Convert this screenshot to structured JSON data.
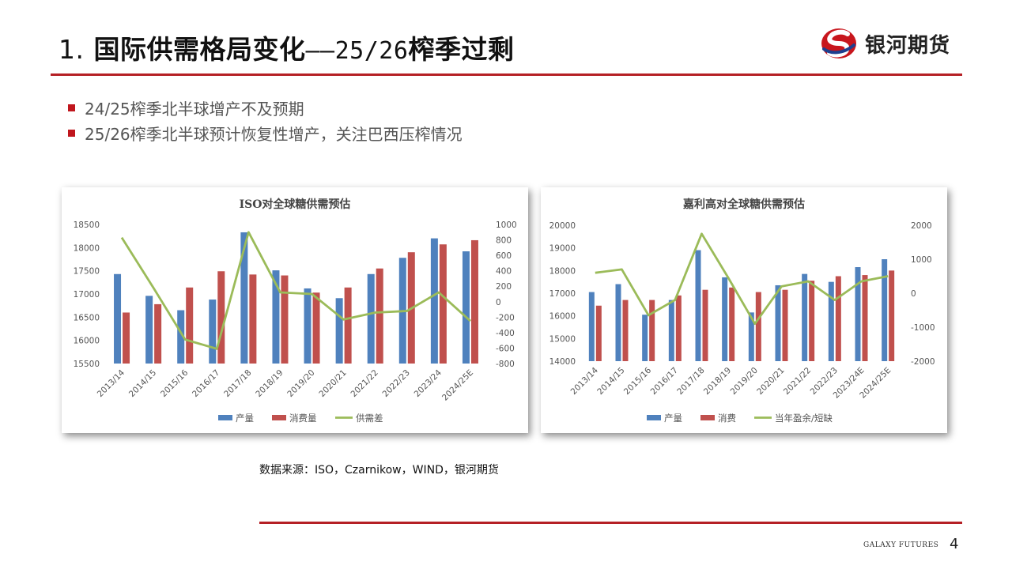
{
  "header": {
    "title_num": "1.",
    "title_main": "国际供需格局变化",
    "title_dash": "——25/26",
    "title_end": "榨季过剩",
    "logo_text": "银河期货",
    "logo_icon": "galaxy-logo-icon",
    "accent": "#b52025"
  },
  "bullets": [
    "24/25榨季北半球增产不及预期",
    "25/26榨季北半球预计恢复性增产，关注巴西压榨情况"
  ],
  "source": "数据来源：ISO，Czarnikow，WIND，银河期货",
  "footer": {
    "brand": "GALAXY FUTURES",
    "page": "4"
  },
  "chart_data": [
    {
      "type": "bar",
      "title": "ISO对全球糖供需预估",
      "categories": [
        "2013/14",
        "2014/15",
        "2015/16",
        "2016/17",
        "2017/18",
        "2018/19",
        "2019/20",
        "2020/21",
        "2021/22",
        "2022/23",
        "2023/24",
        "2024/25E"
      ],
      "series": [
        {
          "name": "产量",
          "type": "bar",
          "axis": "left",
          "color": "#4f81bd",
          "values": [
            17430,
            16960,
            16650,
            16880,
            18330,
            17510,
            17120,
            16910,
            17430,
            17780,
            18200,
            17920
          ]
        },
        {
          "name": "消费量",
          "type": "bar",
          "axis": "left",
          "color": "#c0504d",
          "values": [
            16600,
            16780,
            17140,
            17490,
            17420,
            17400,
            17030,
            17140,
            17550,
            17900,
            18070,
            18160
          ]
        },
        {
          "name": "供需差",
          "type": "line",
          "axis": "right",
          "color": "#9bbb59",
          "values": [
            830,
            180,
            -490,
            -610,
            900,
            120,
            100,
            -230,
            -140,
            -120,
            120,
            -250
          ]
        }
      ],
      "ylim_left": [
        15500,
        18500
      ],
      "yticks_left": [
        15500,
        16000,
        16500,
        17000,
        17500,
        18000,
        18500
      ],
      "ylim_right": [
        -800,
        1000
      ],
      "yticks_right": [
        -800,
        -600,
        -400,
        -200,
        0,
        200,
        400,
        600,
        800,
        1000
      ],
      "legend": "bottom"
    },
    {
      "type": "bar",
      "title": "嘉利高对全球糖供需预估",
      "categories": [
        "2013/14",
        "2014/15",
        "2015/16",
        "2016/17",
        "2017/18",
        "2018/19",
        "2019/20",
        "2020/21",
        "2021/22",
        "2022/23",
        "2023/24E",
        "2024/25E"
      ],
      "series": [
        {
          "name": "产量",
          "type": "bar",
          "axis": "left",
          "color": "#4f81bd",
          "values": [
            17050,
            17400,
            16050,
            16700,
            18900,
            17700,
            16150,
            17350,
            17850,
            17500,
            18150,
            18500
          ]
        },
        {
          "name": "消费",
          "type": "bar",
          "axis": "left",
          "color": "#c0504d",
          "values": [
            16450,
            16700,
            16700,
            16900,
            17150,
            17250,
            17050,
            17150,
            17550,
            17750,
            17800,
            18000
          ]
        },
        {
          "name": "当年盈余/短缺",
          "type": "line",
          "axis": "right",
          "color": "#9bbb59",
          "values": [
            600,
            700,
            -650,
            -200,
            1750,
            450,
            -900,
            200,
            350,
            -200,
            350,
            500
          ]
        }
      ],
      "ylim_left": [
        14000,
        20000
      ],
      "yticks_left": [
        14000,
        15000,
        16000,
        17000,
        18000,
        19000,
        20000
      ],
      "ylim_right": [
        -2000,
        2000
      ],
      "yticks_right": [
        -2000,
        -1000,
        0,
        1000,
        2000
      ],
      "legend": "bottom"
    }
  ]
}
